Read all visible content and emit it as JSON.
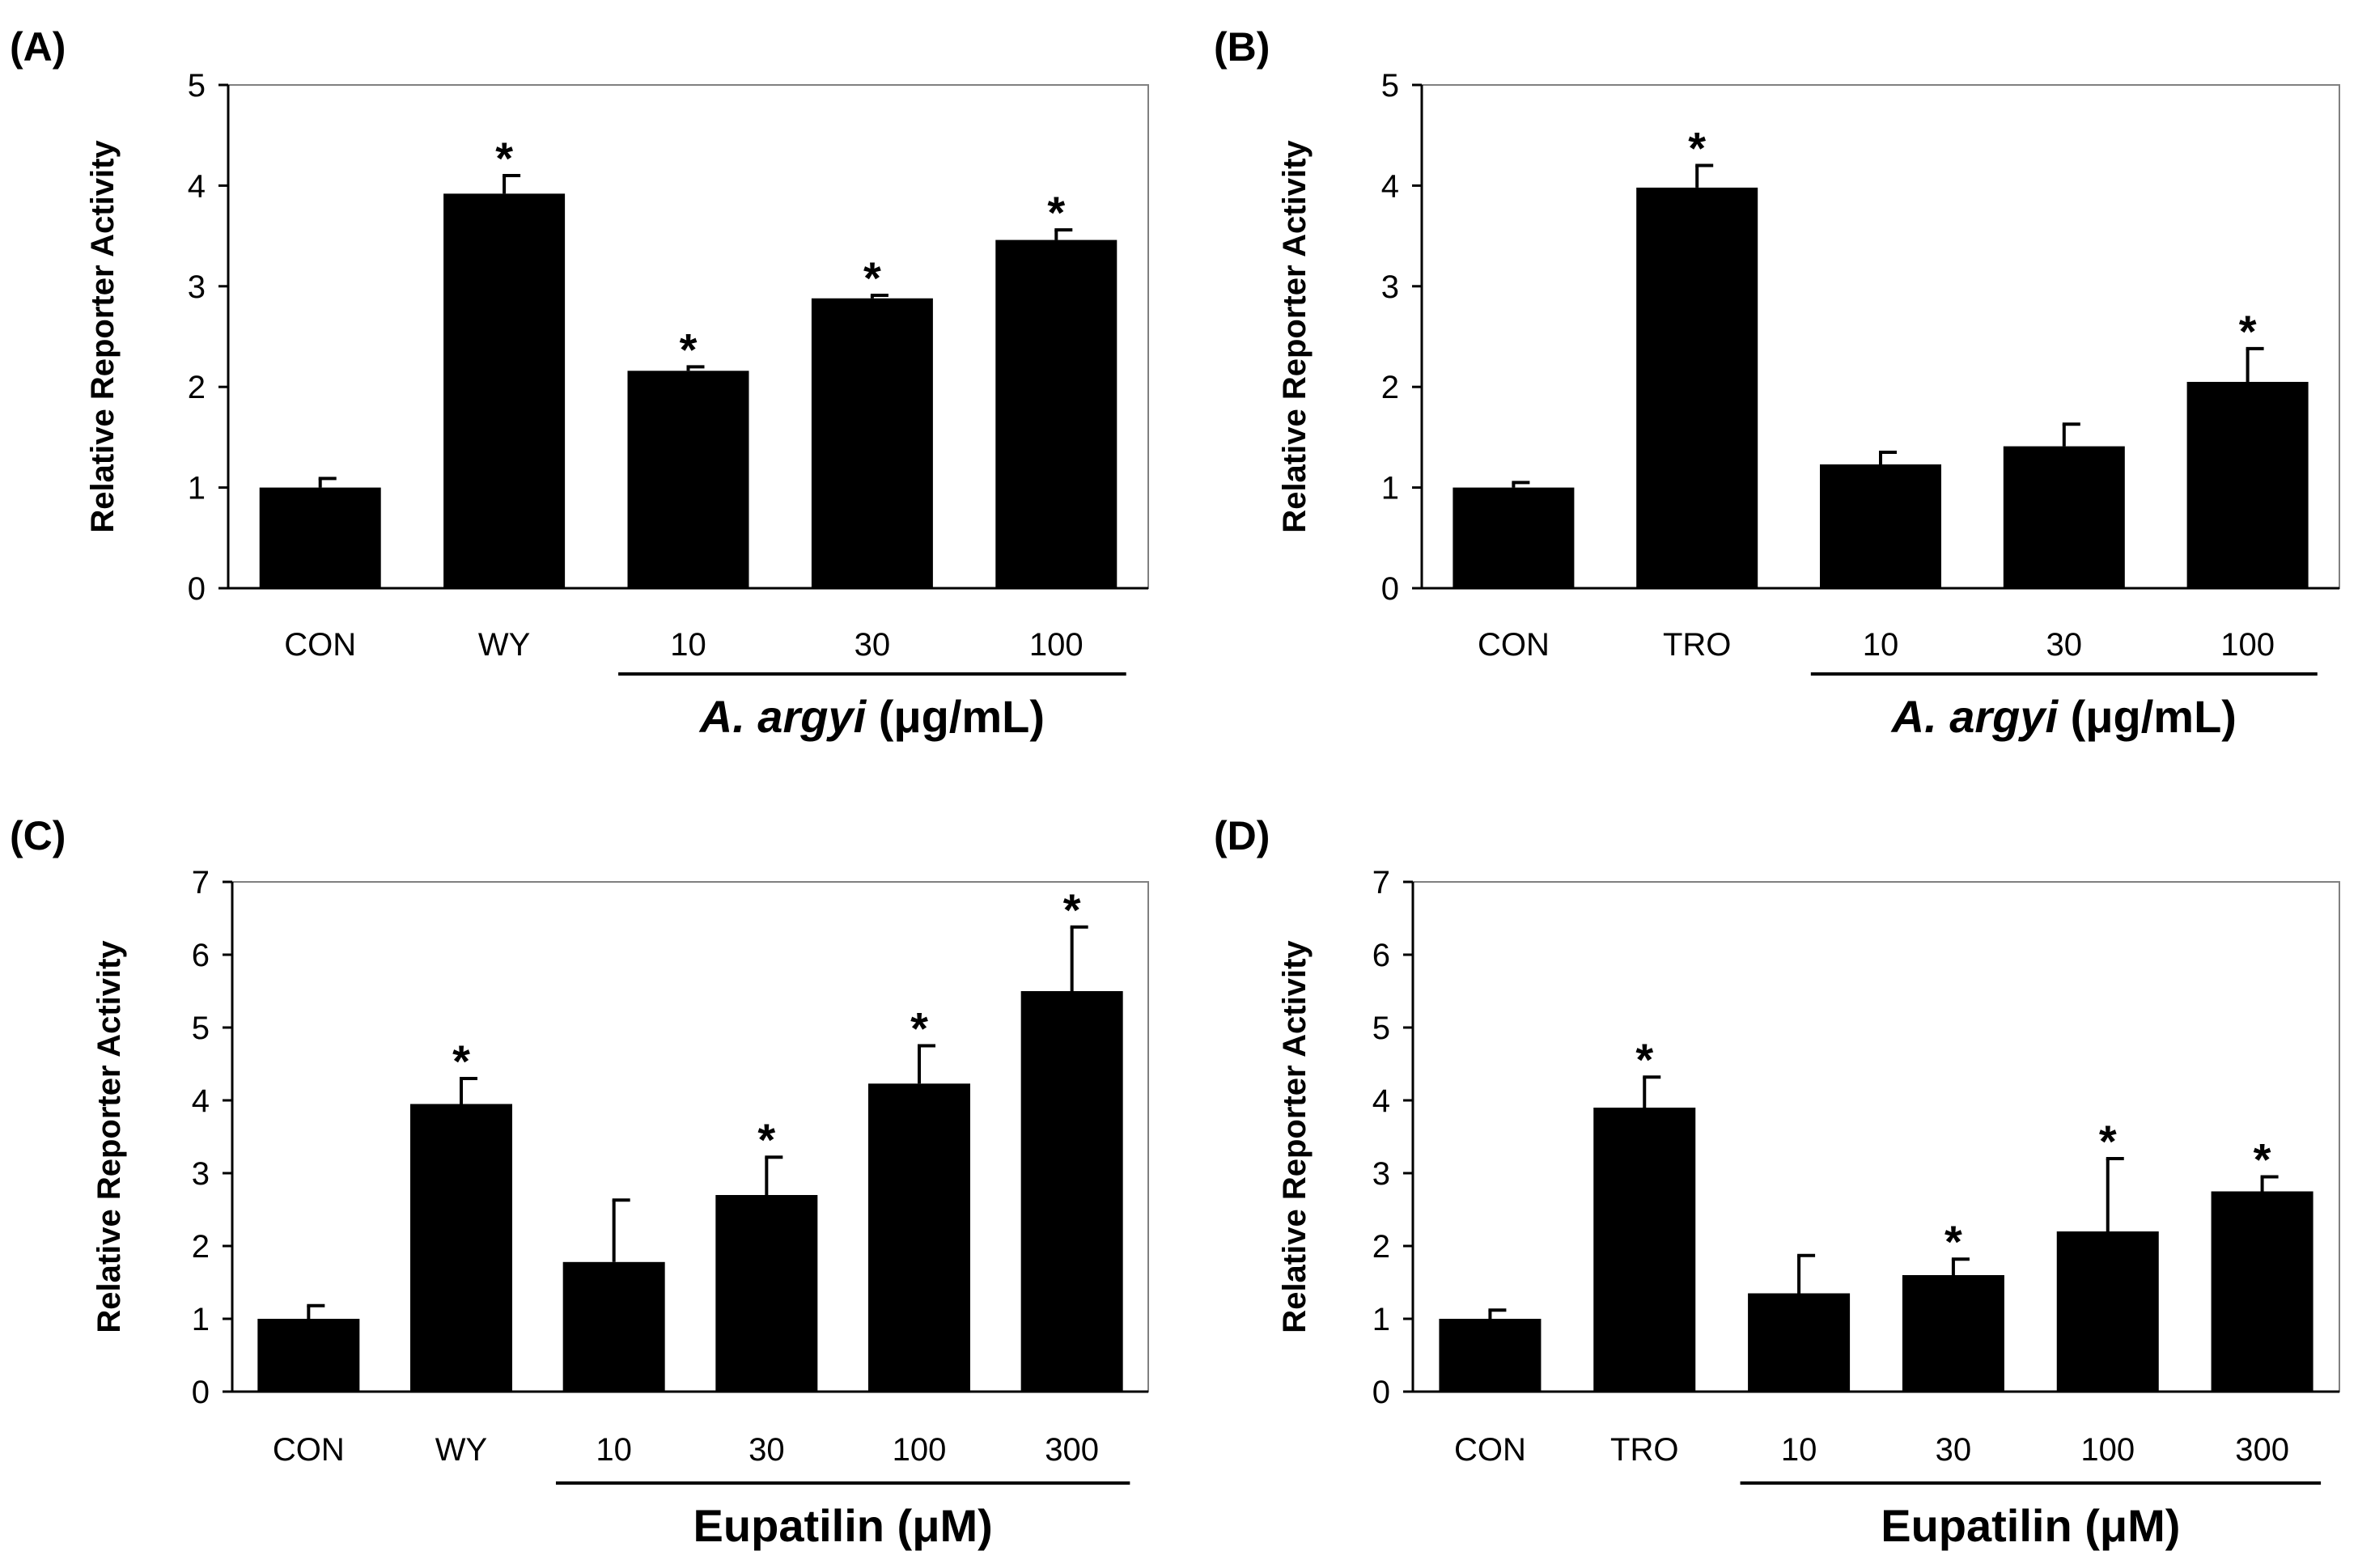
{
  "chart_data": [
    {
      "type": "bar",
      "panel": "(A)",
      "ylabel": "Relative Reporter Activity",
      "ylim": [
        0,
        5
      ],
      "yticks": [
        0,
        1,
        2,
        3,
        4,
        5
      ],
      "categories": [
        "CON",
        "WY",
        "10",
        "30",
        "100"
      ],
      "values": [
        1.0,
        3.92,
        2.16,
        2.88,
        3.46
      ],
      "errors": [
        0.09,
        0.18,
        0.04,
        0.03,
        0.1
      ],
      "significant": [
        false,
        true,
        true,
        true,
        true
      ],
      "significance_mark": "*",
      "group": {
        "first_index": 2,
        "last_index": 4,
        "italic": "A. argyi",
        "suffix": " (μg/mL)"
      }
    },
    {
      "type": "bar",
      "panel": "(B)",
      "ylabel": "Relative Reporter Activity",
      "ylim": [
        0,
        5
      ],
      "yticks": [
        0,
        1,
        2,
        3,
        4,
        5
      ],
      "categories": [
        "CON",
        "TRO",
        "10",
        "30",
        "100"
      ],
      "values": [
        1.0,
        3.98,
        1.23,
        1.41,
        2.05
      ],
      "errors": [
        0.05,
        0.22,
        0.12,
        0.22,
        0.33
      ],
      "significant": [
        false,
        true,
        false,
        false,
        true
      ],
      "significance_mark": "*",
      "group": {
        "first_index": 2,
        "last_index": 4,
        "italic": "A. argyi",
        "suffix": " (μg/mL)"
      }
    },
    {
      "type": "bar",
      "panel": "(C)",
      "ylabel": "Relative Reporter Activity",
      "ylim": [
        0,
        7
      ],
      "yticks": [
        0,
        1,
        2,
        3,
        4,
        5,
        6,
        7
      ],
      "categories": [
        "CON",
        "WY",
        "10",
        "30",
        "100",
        "300"
      ],
      "values": [
        1.0,
        3.95,
        1.78,
        2.7,
        4.23,
        5.5
      ],
      "errors": [
        0.18,
        0.35,
        0.85,
        0.52,
        0.52,
        0.88
      ],
      "significant": [
        false,
        true,
        false,
        true,
        true,
        true
      ],
      "significance_mark": "*",
      "group": {
        "first_index": 2,
        "last_index": 5,
        "italic": "",
        "suffix": "Eupatilin (μM)"
      }
    },
    {
      "type": "bar",
      "panel": "(D)",
      "ylabel": "Relative Reporter Activity",
      "ylim": [
        0,
        7
      ],
      "yticks": [
        0,
        1,
        2,
        3,
        4,
        5,
        6,
        7
      ],
      "categories": [
        "CON",
        "TRO",
        "10",
        "30",
        "100",
        "300"
      ],
      "values": [
        1.0,
        3.9,
        1.35,
        1.6,
        2.2,
        2.75
      ],
      "errors": [
        0.12,
        0.42,
        0.52,
        0.22,
        1.0,
        0.2
      ],
      "significant": [
        false,
        true,
        false,
        true,
        true,
        true
      ],
      "significance_mark": "*",
      "group": {
        "first_index": 2,
        "last_index": 5,
        "italic": "",
        "suffix": "Eupatilin (μM)"
      }
    }
  ]
}
